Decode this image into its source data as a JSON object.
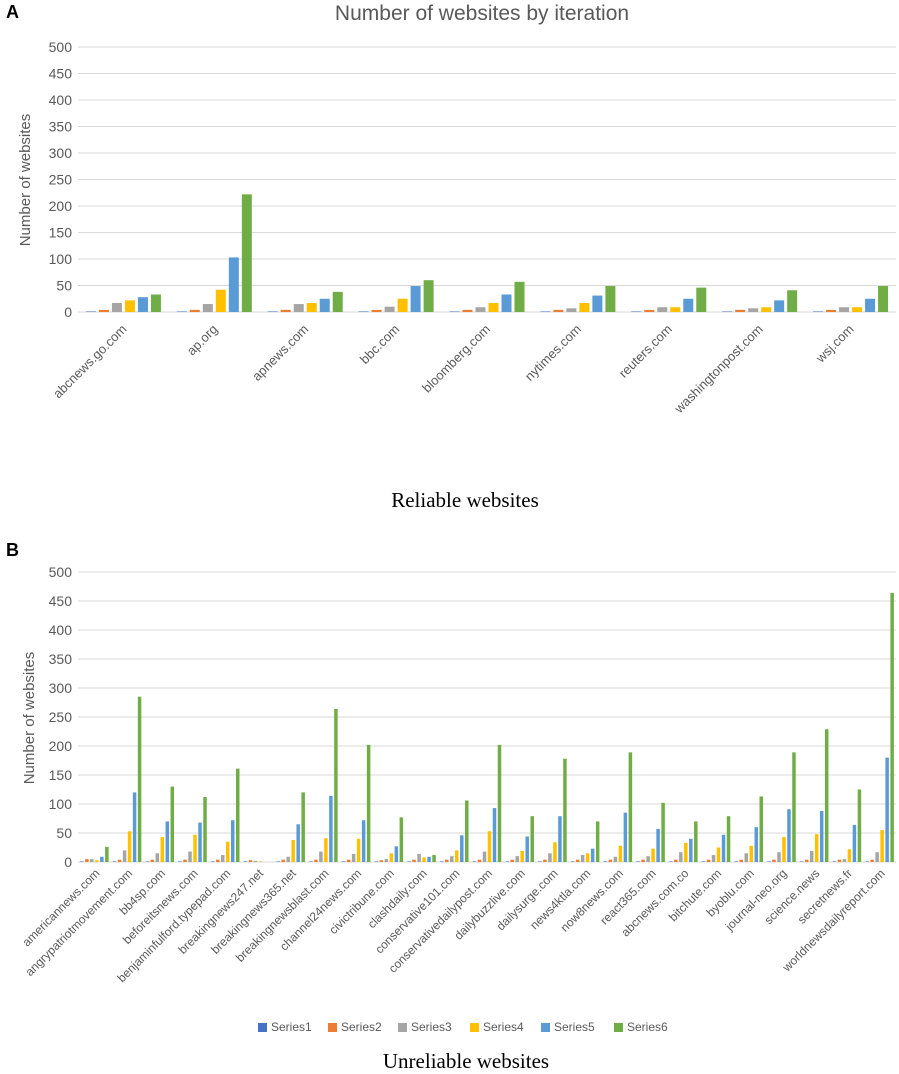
{
  "panels": {
    "a": {
      "letter": "A",
      "caption": "Reliable websites"
    },
    "b": {
      "letter": "B",
      "caption": "Unreliable websites"
    }
  },
  "legend": [
    "Series1",
    "Series2",
    "Series3",
    "Series4",
    "Series5",
    "Series6"
  ],
  "colors": {
    "Series1": "#4472c4",
    "Series2": "#ed7d31",
    "Series3": "#a5a5a5",
    "Series4": "#ffc000",
    "Series5": "#5b9bd5",
    "Series6": "#70ad47"
  },
  "chart_data": [
    {
      "type": "bar",
      "title": "Number of websites by iteration",
      "xlabel": "",
      "ylabel": "Number of websites",
      "ylim": [
        0,
        500
      ],
      "yticks": [
        0,
        50,
        100,
        150,
        200,
        250,
        300,
        350,
        400,
        450,
        500
      ],
      "grid": true,
      "categories": [
        "abcnews.go.com",
        "ap.org",
        "apnews.com",
        "bbc.com",
        "bloomberg.com",
        "nytimes.com",
        "reuters.com",
        "washingtonpost.com",
        "wsj.com"
      ],
      "series": [
        {
          "name": "Series1",
          "values": [
            1,
            1,
            1,
            1,
            1,
            1,
            1,
            1,
            1
          ]
        },
        {
          "name": "Series2",
          "values": [
            4,
            4,
            4,
            4,
            4,
            4,
            4,
            4,
            4
          ]
        },
        {
          "name": "Series3",
          "values": [
            17,
            15,
            15,
            10,
            9,
            7,
            9,
            7,
            9
          ]
        },
        {
          "name": "Series4",
          "values": [
            22,
            42,
            17,
            25,
            17,
            17,
            9,
            9,
            9
          ]
        },
        {
          "name": "Series5",
          "values": [
            28,
            103,
            25,
            49,
            33,
            31,
            25,
            22,
            25
          ]
        },
        {
          "name": "Series6",
          "values": [
            33,
            222,
            38,
            60,
            57,
            49,
            46,
            41,
            49
          ]
        }
      ]
    },
    {
      "type": "bar",
      "title": "",
      "xlabel": "",
      "ylabel": "Number of websites",
      "ylim": [
        0,
        500
      ],
      "yticks": [
        0,
        50,
        100,
        150,
        200,
        250,
        300,
        350,
        400,
        450,
        500
      ],
      "grid": true,
      "legend_position": "bottom",
      "categories": [
        "americannews.com",
        "angrypatriotmovement.com",
        "bb4sp.com",
        "beforeitsnews.com",
        "benjaminfulford.typepad.com",
        "breakingnews247.net",
        "breakingnews365.net",
        "breakingnewsblast.com",
        "channel24news.com",
        "civictribune.com",
        "clashdaily.com",
        "conservative101.com",
        "conservativedailypost.com",
        "dailybuzzlive.com",
        "dailysurge.com",
        "news4ktla.com",
        "now8news.com",
        "react365.com",
        "abcnews.com.co",
        "bitchute.com",
        "byoblu.com",
        "journal-neo.org",
        "science.news",
        "secretnews.fr",
        "worldnewsdailyreport.com"
      ],
      "series": [
        {
          "name": "Series1",
          "values": [
            1,
            1,
            1,
            1,
            1,
            1,
            1,
            1,
            1,
            1,
            1,
            1,
            1,
            1,
            1,
            1,
            1,
            1,
            1,
            1,
            1,
            1,
            1,
            1,
            1
          ]
        },
        {
          "name": "Series2",
          "values": [
            5,
            4,
            4,
            4,
            4,
            3,
            4,
            4,
            4,
            3,
            4,
            4,
            4,
            4,
            4,
            4,
            4,
            4,
            4,
            4,
            4,
            4,
            4,
            4,
            4
          ]
        },
        {
          "name": "Series3",
          "values": [
            5,
            20,
            15,
            18,
            12,
            2,
            9,
            18,
            14,
            5,
            14,
            10,
            18,
            10,
            15,
            12,
            9,
            10,
            17,
            12,
            15,
            17,
            19,
            5,
            17
          ]
        },
        {
          "name": "Series4",
          "values": [
            3,
            53,
            43,
            47,
            35,
            1,
            38,
            41,
            40,
            15,
            8,
            20,
            53,
            19,
            34,
            15,
            28,
            23,
            33,
            25,
            28,
            43,
            48,
            22,
            55
          ]
        },
        {
          "name": "Series5",
          "values": [
            9,
            120,
            70,
            68,
            72,
            0,
            65,
            114,
            72,
            27,
            9,
            46,
            93,
            44,
            79,
            23,
            85,
            57,
            40,
            47,
            60,
            91,
            88,
            64,
            180
          ]
        },
        {
          "name": "Series6",
          "values": [
            26,
            285,
            130,
            112,
            161,
            0,
            120,
            264,
            202,
            77,
            12,
            106,
            202,
            79,
            178,
            70,
            189,
            102,
            70,
            79,
            113,
            189,
            229,
            125,
            464
          ]
        }
      ]
    }
  ]
}
